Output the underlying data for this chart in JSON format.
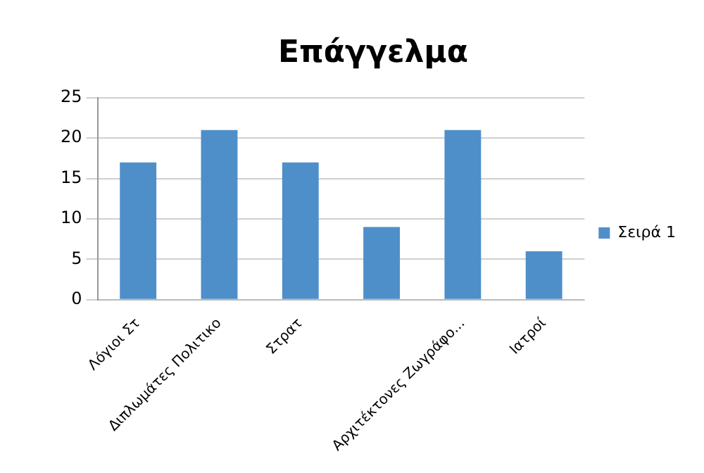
{
  "chart_data": {
    "type": "bar",
    "title": "Επάγγελμα",
    "categories": [
      "Λόγιοι Στ",
      "Διπλωμάτες Πολιτικο",
      "Στρατ",
      null,
      "Αρχιτέκτονες Ζωγράφο...",
      "Ιατροί"
    ],
    "series": [
      {
        "name": "Σειρά 1",
        "color": "#4f8fc9",
        "values": [
          17,
          21,
          17,
          9,
          21,
          6
        ]
      }
    ],
    "ylim": [
      0,
      25
    ],
    "yticks": [
      0,
      5,
      10,
      15,
      20,
      25
    ],
    "grid": "y",
    "legend": "right"
  }
}
